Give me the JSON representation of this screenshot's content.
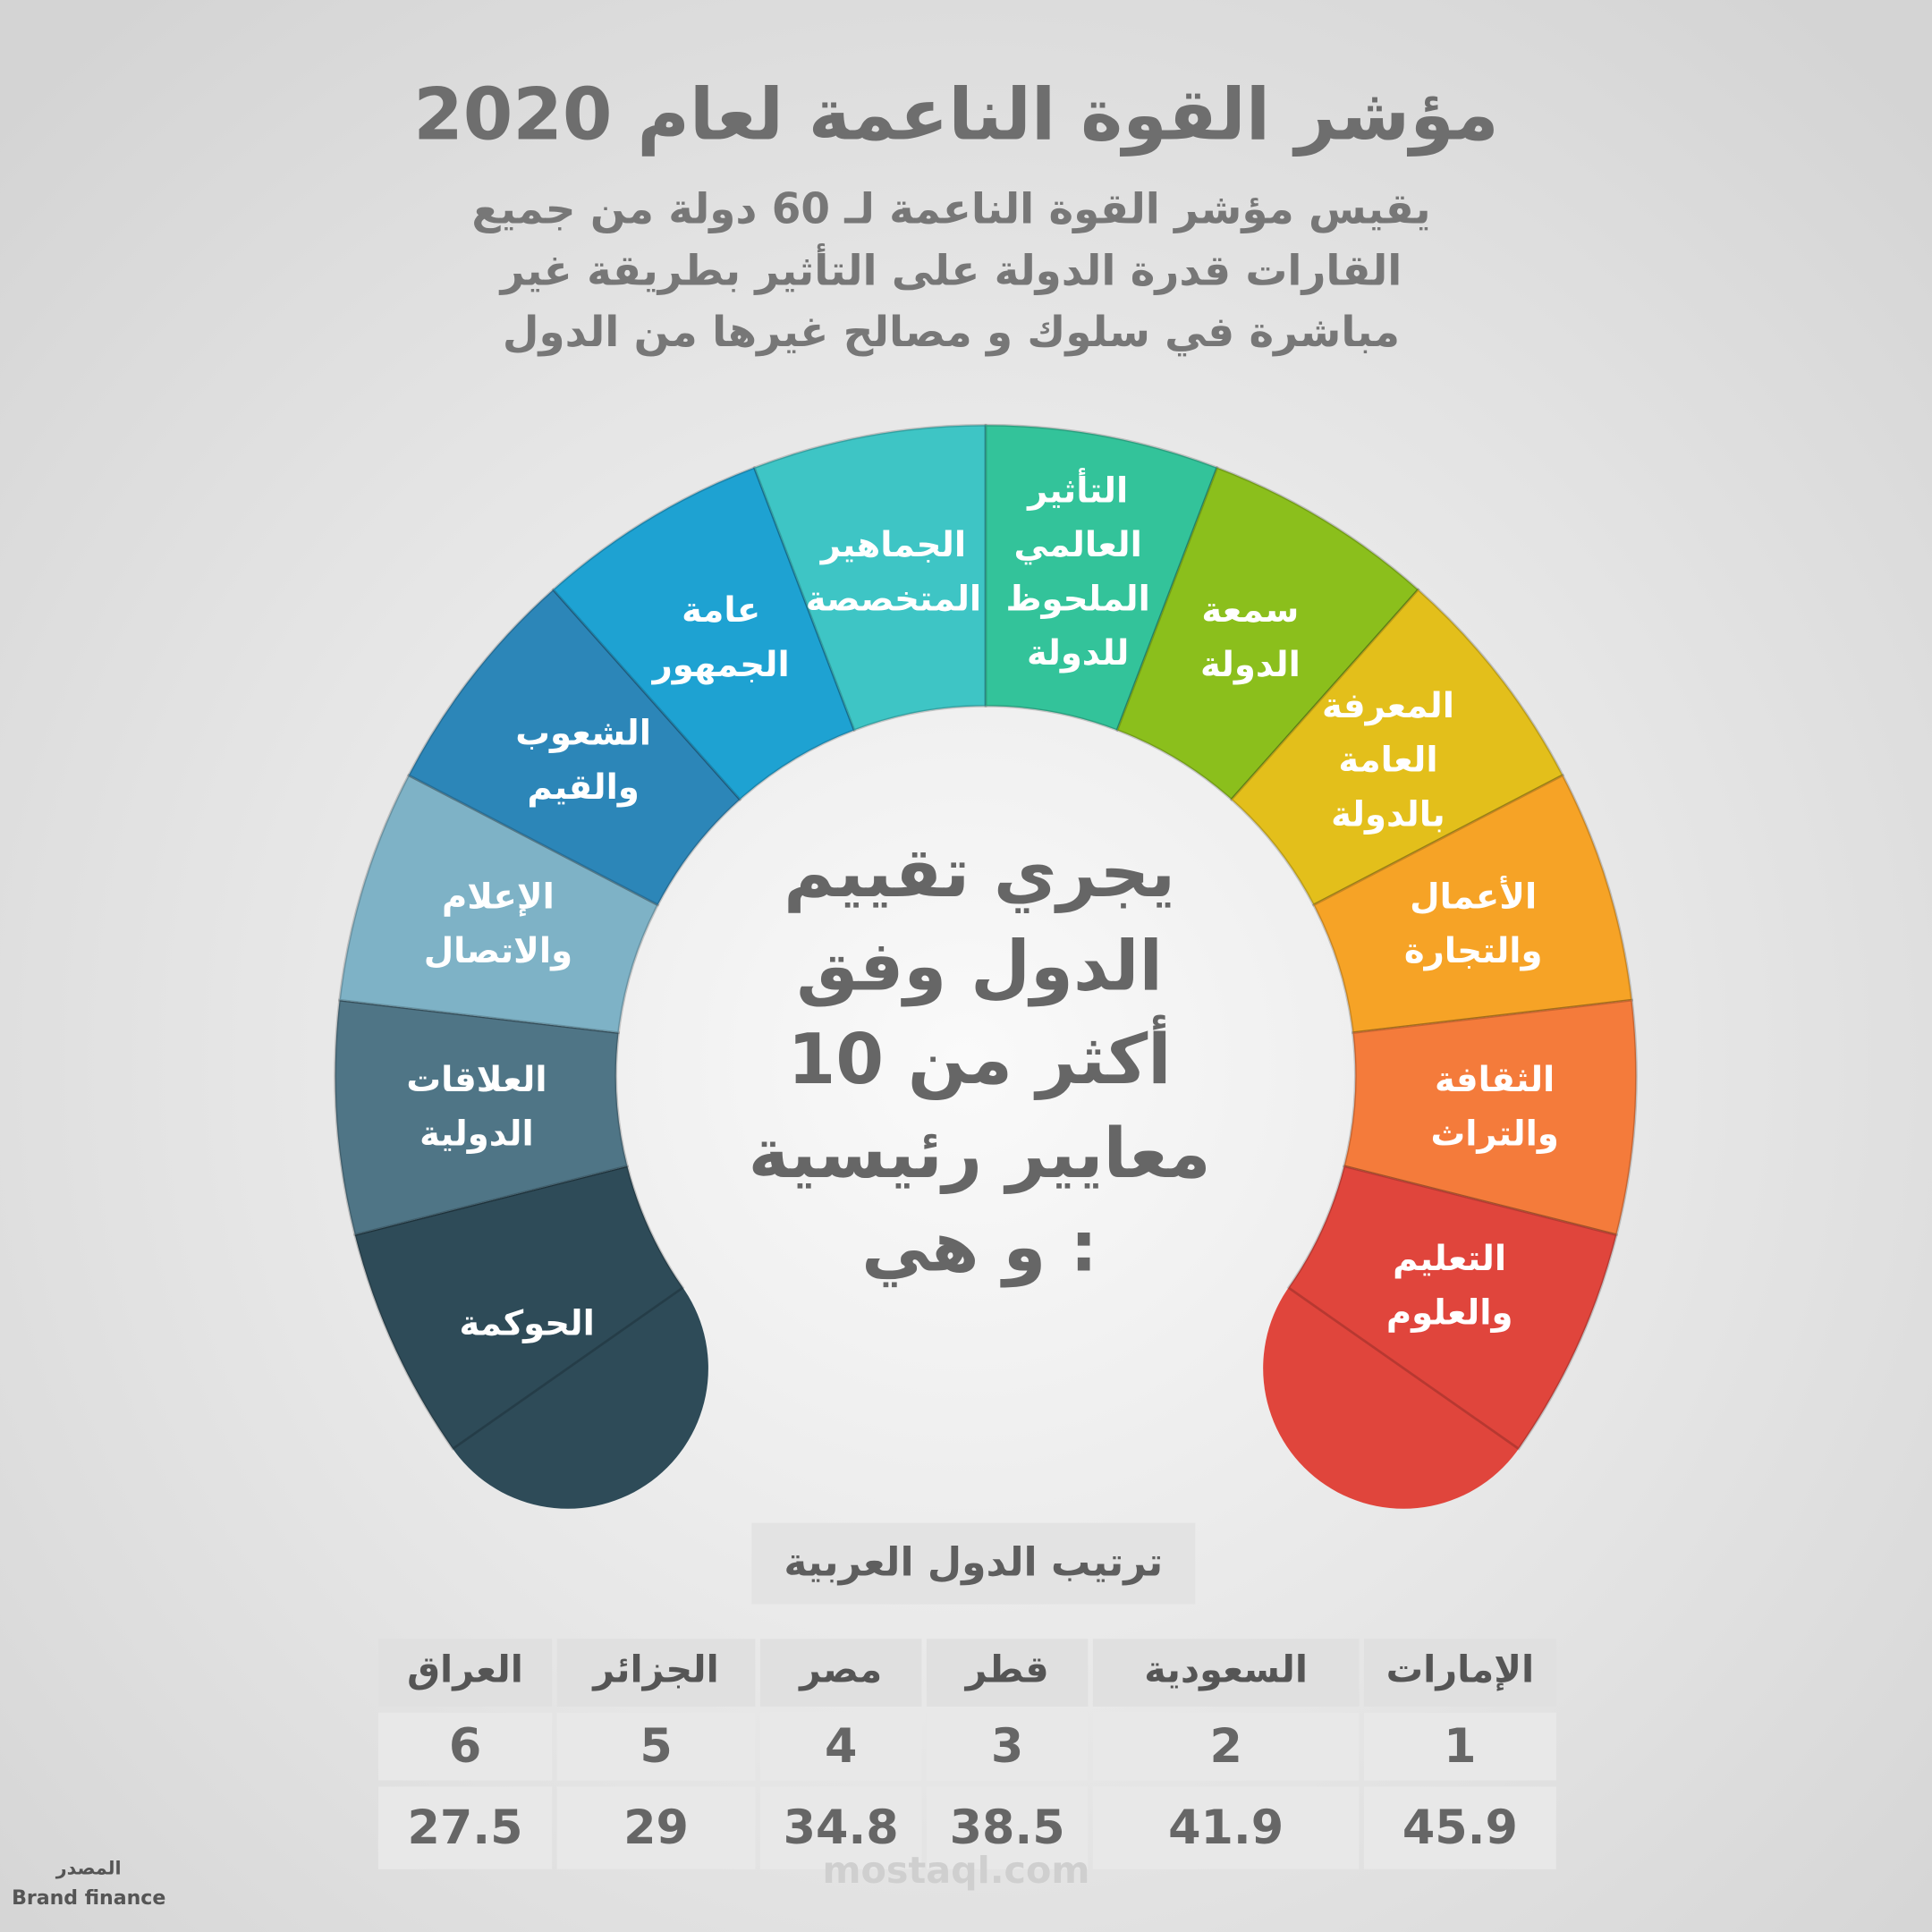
{
  "header": {
    "title": "مؤشر القوة الناعمة لعام 2020",
    "subtitle_lines": [
      "يقيس مؤشر القوة الناعمة  لـ 60 دولة من جميع",
      "القارات قدرة الدولة على التأثير بطريقة غير",
      "مباشرة في سلوك و مصالح غيرها من الدول"
    ]
  },
  "segments": [
    {
      "lines": [
        "الحوكمة"
      ],
      "color": "#2e4b58"
    },
    {
      "lines": [
        "العلاقات",
        "الدولية"
      ],
      "color": "#4f7586"
    },
    {
      "lines": [
        "الإعلام",
        "والاتصال"
      ],
      "color": "#7eb2c6"
    },
    {
      "lines": [
        "الشعوب",
        "والقيم"
      ],
      "color": "#2c86b8"
    },
    {
      "lines": [
        "عامة",
        "الجمهور"
      ],
      "color": "#1ea2d2"
    },
    {
      "lines": [
        "الجماهير",
        "المتخصصة"
      ],
      "color": "#3ec5c5"
    },
    {
      "lines": [
        "التأثير",
        "العالمي",
        "الملحوظ",
        "للدولة"
      ],
      "color": "#33c39a"
    },
    {
      "lines": [
        "سمعة",
        "الدولة"
      ],
      "color": "#8bbf1c"
    },
    {
      "lines": [
        "المعرفة",
        "العامة",
        "بالدولة"
      ],
      "color": "#e3bf1b"
    },
    {
      "lines": [
        "الأعمال",
        "والتجارة"
      ],
      "color": "#f6a326"
    },
    {
      "lines": [
        "الثقافة",
        "والتراث"
      ],
      "color": "#f47b3b"
    },
    {
      "lines": [
        "التعليم",
        "والعلوم"
      ],
      "color": "#e0453c"
    }
  ],
  "center_lines": [
    "يجري تقييم",
    "الدول وفق",
    "أكثر من 10",
    "معايير رئيسية",
    "و هي :"
  ],
  "table": {
    "heading": "ترتيب الدول العربية",
    "countries": [
      "الإمارات",
      "السعودية",
      "قطر",
      "مصر",
      "الجزائر",
      "العراق"
    ],
    "ranks": [
      1,
      2,
      3,
      4,
      5,
      6
    ],
    "scores": [
      45.9,
      41.9,
      38.5,
      34.8,
      29,
      27.5
    ]
  },
  "source": {
    "label": "المصدر",
    "name": "Brand finance"
  },
  "watermark": "mostaql.com"
}
